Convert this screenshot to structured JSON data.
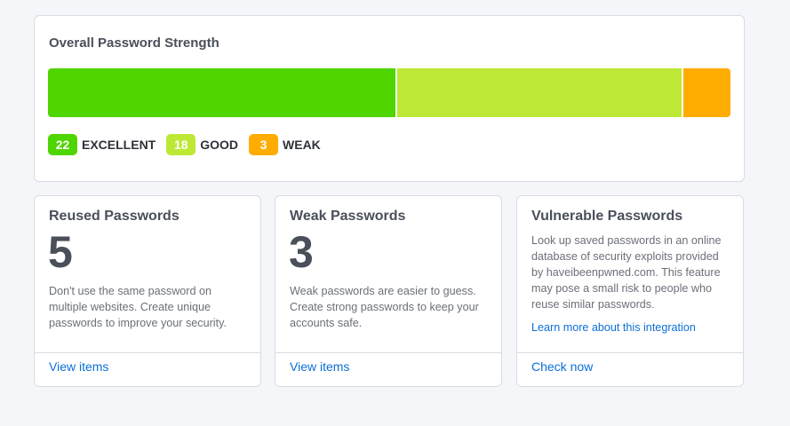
{
  "overall": {
    "title": "Overall Password Strength",
    "segments": [
      {
        "count": "22",
        "label": "EXCELLENT",
        "color": "#4fd500"
      },
      {
        "count": "18",
        "label": "GOOD",
        "color": "#bde836"
      },
      {
        "count": "3",
        "label": "WEAK",
        "color": "#ffac00"
      }
    ]
  },
  "cards": [
    {
      "title": "Reused Passwords",
      "count": "5",
      "description": "Don't use the same password on multiple websites. Create unique passwords to improve your security.",
      "action": "View items"
    },
    {
      "title": "Weak Passwords",
      "count": "3",
      "description": "Weak passwords are easier to guess. Create strong passwords to keep your accounts safe.",
      "action": "View items"
    },
    {
      "title": "Vulnerable Passwords",
      "description": "Look up saved passwords in an online database of security exploits provided by haveibeenpwned.com. This feature may pose a small risk to people who reuse similar passwords.",
      "link": "Learn more about this integration",
      "action": "Check now"
    }
  ]
}
